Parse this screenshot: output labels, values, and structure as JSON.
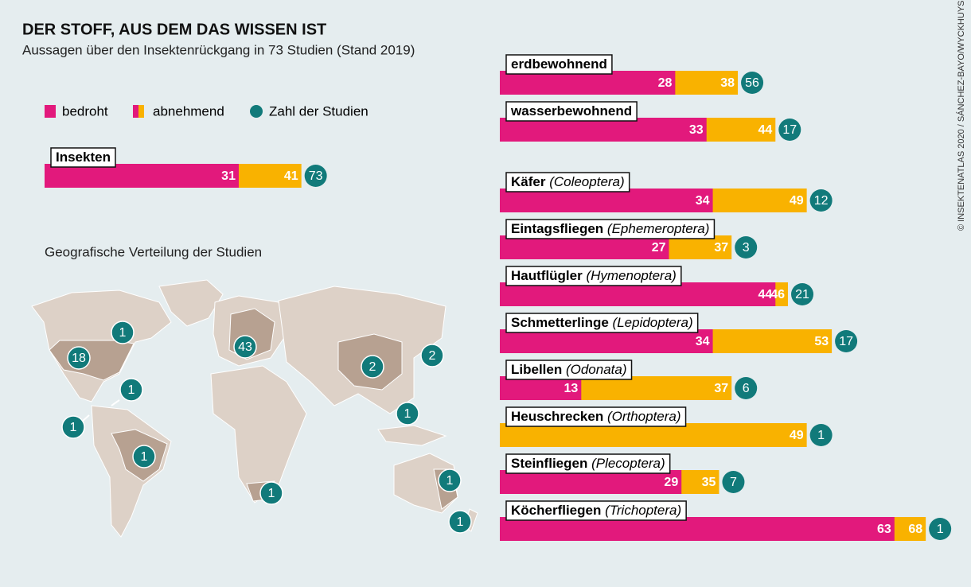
{
  "title": "DER STOFF, AUS DEM DAS WISSEN IST",
  "subtitle": "Aussagen über den Insektenrückgang in 73 Studien (Stand 2019)",
  "credit": "© INSEKTENATLAS 2020 / SÁNCHEZ-BAYO/WYCKHUYS",
  "chart_data": {
    "type": "bar",
    "categories": [
      "Insekten",
      "erdbewohnend",
      "wasserbewohnend",
      "Käfer",
      "Eintagsfliegen",
      "Hautflügler",
      "Schmetterlinge",
      "Libellen",
      "Heuschrecken",
      "Steinfliegen",
      "Köcherfliegen"
    ],
    "latin_names": [
      null,
      null,
      null,
      "(Coleoptera)",
      "(Ephemeroptera)",
      "(Hymenoptera)",
      "(Lepidoptera)",
      "(Odonata)",
      "(Orthoptera)",
      "(Plecoptera)",
      "(Trichoptera)"
    ],
    "series": [
      {
        "name": "bedroht",
        "color": "#e2197c",
        "values": [
          31,
          28,
          33,
          34,
          27,
          44,
          34,
          13,
          null,
          29,
          63
        ]
      },
      {
        "name": "abnehmend",
        "color": "#f9b200",
        "values": [
          41,
          38,
          44,
          49,
          37,
          46,
          53,
          37,
          49,
          35,
          68
        ]
      }
    ],
    "studies_label": "Zahl der Studien",
    "studies_color": "#117a7a",
    "studies": [
      73,
      56,
      17,
      12,
      3,
      21,
      17,
      6,
      1,
      7,
      1
    ]
  },
  "map": {
    "title": "Geografische Verteilung der Studien",
    "studies": [
      1,
      18,
      43,
      2,
      2,
      1,
      1,
      1,
      1,
      1,
      1,
      1
    ]
  }
}
